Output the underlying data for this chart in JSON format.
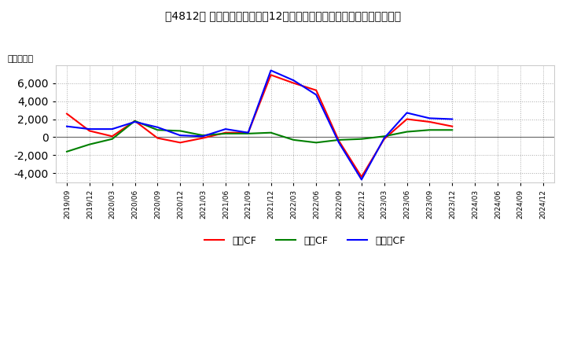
{
  "title": "［4812］ キャッシュフローの12か月移動合計の対前年同期増減額の推移",
  "ylabel": "（百万円）",
  "background_color": "#ffffff",
  "plot_bg_color": "#ffffff",
  "grid_color": "#aaaaaa",
  "x_labels": [
    "2019/09",
    "2019/12",
    "2020/03",
    "2020/06",
    "2020/09",
    "2020/12",
    "2021/03",
    "2021/06",
    "2021/09",
    "2021/12",
    "2022/03",
    "2022/06",
    "2022/09",
    "2022/12",
    "2023/03",
    "2023/06",
    "2023/09",
    "2023/12",
    "2024/03",
    "2024/06",
    "2024/09",
    "2024/12"
  ],
  "operating_cf": [
    2600,
    700,
    100,
    1800,
    -100,
    -600,
    -100,
    500,
    500,
    6900,
    6000,
    5200,
    -400,
    -4400,
    -200,
    2000,
    1700,
    1200,
    null,
    null,
    null,
    null
  ],
  "investing_cf": [
    -1600,
    -800,
    -200,
    1800,
    800,
    700,
    200,
    400,
    400,
    500,
    -300,
    -600,
    -300,
    -200,
    100,
    600,
    800,
    800,
    null,
    null,
    null,
    null
  ],
  "free_cf": [
    1200,
    900,
    900,
    1700,
    1100,
    200,
    100,
    900,
    500,
    7400,
    6300,
    4700,
    -600,
    -4700,
    -100,
    2700,
    2100,
    2000,
    null,
    null,
    null,
    null
  ],
  "ylim": [
    -5000,
    8000
  ],
  "yticks": [
    -4000,
    -2000,
    0,
    2000,
    4000,
    6000
  ],
  "legend_labels": [
    "営業CF",
    "投資CF",
    "フリーCF"
  ],
  "line_colors": [
    "#ff0000",
    "#008000",
    "#0000ff"
  ],
  "line_width": 1.5
}
